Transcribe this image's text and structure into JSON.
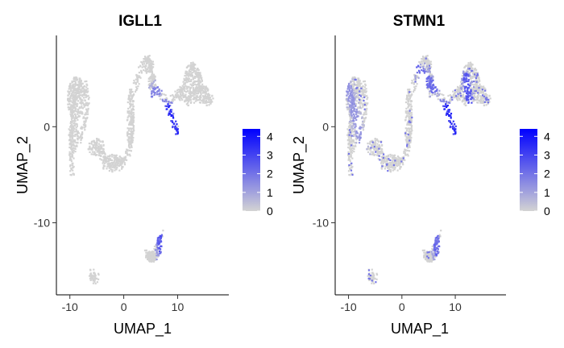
{
  "chart_data": [
    {
      "type": "scatter",
      "title": "IGLL1",
      "xlabel": "UMAP_1",
      "ylabel": "UMAP_2",
      "xlim": [
        -12.5,
        19.5
      ],
      "ylim": [
        -17.5,
        9.5
      ],
      "xticks": [
        -10,
        0,
        10
      ],
      "yticks": [
        -10,
        0
      ],
      "colorbar": {
        "min": 0,
        "max": 4.4,
        "ticks": [
          0,
          1,
          2,
          3,
          4
        ],
        "low_color": "#d3d3d3",
        "high_color": "#0000ff"
      },
      "grid": false,
      "legend_position": "right",
      "high_regions": [
        {
          "x": [
            8.0,
            10.0
          ],
          "y": [
            2.0,
            -1.0
          ],
          "value": 4.0
        },
        {
          "x": [
            9.5,
            10.3
          ],
          "y": [
            -0.5,
            -0.9
          ],
          "value": 4.0
        },
        {
          "x": [
            9.2,
            9.4
          ],
          "y": [
            -4.5,
            -4.7
          ],
          "value": 3.5
        },
        {
          "x": [
            6.5,
            7.2
          ],
          "y": [
            -11.2,
            -13.5
          ],
          "value": 3.0
        },
        {
          "x": [
            5.0,
            8.0
          ],
          "y": [
            3.0,
            4.8
          ],
          "value": 2.0
        }
      ]
    },
    {
      "type": "scatter",
      "title": "STMN1",
      "xlabel": "UMAP_1",
      "ylabel": "UMAP_2",
      "xlim": [
        -12.5,
        19.5
      ],
      "ylim": [
        -17.5,
        9.5
      ],
      "xticks": [
        -10,
        0,
        10
      ],
      "yticks": [
        -10,
        0
      ],
      "colorbar": {
        "min": 0,
        "max": 4.4,
        "ticks": [
          0,
          1,
          2,
          3,
          4
        ],
        "low_color": "#d3d3d3",
        "high_color": "#0000ff"
      },
      "grid": false,
      "legend_position": "right",
      "high_regions": [
        {
          "x": [
            8.0,
            10.0
          ],
          "y": [
            2.0,
            -0.3
          ],
          "value": 4.0
        },
        {
          "x": [
            3.0,
            6.0
          ],
          "y": [
            6.0,
            4.0
          ],
          "value": 2.5
        },
        {
          "x": [
            12.0,
            13.0
          ],
          "y": [
            5.0,
            1.5
          ],
          "value": 3.0
        },
        {
          "x": [
            -10.0,
            -7.0
          ],
          "y": [
            4.0,
            -3.0
          ],
          "value": 1.5
        },
        {
          "x": [
            6.0,
            7.0
          ],
          "y": [
            -11.0,
            -13.5
          ],
          "value": 2.5
        }
      ]
    }
  ]
}
